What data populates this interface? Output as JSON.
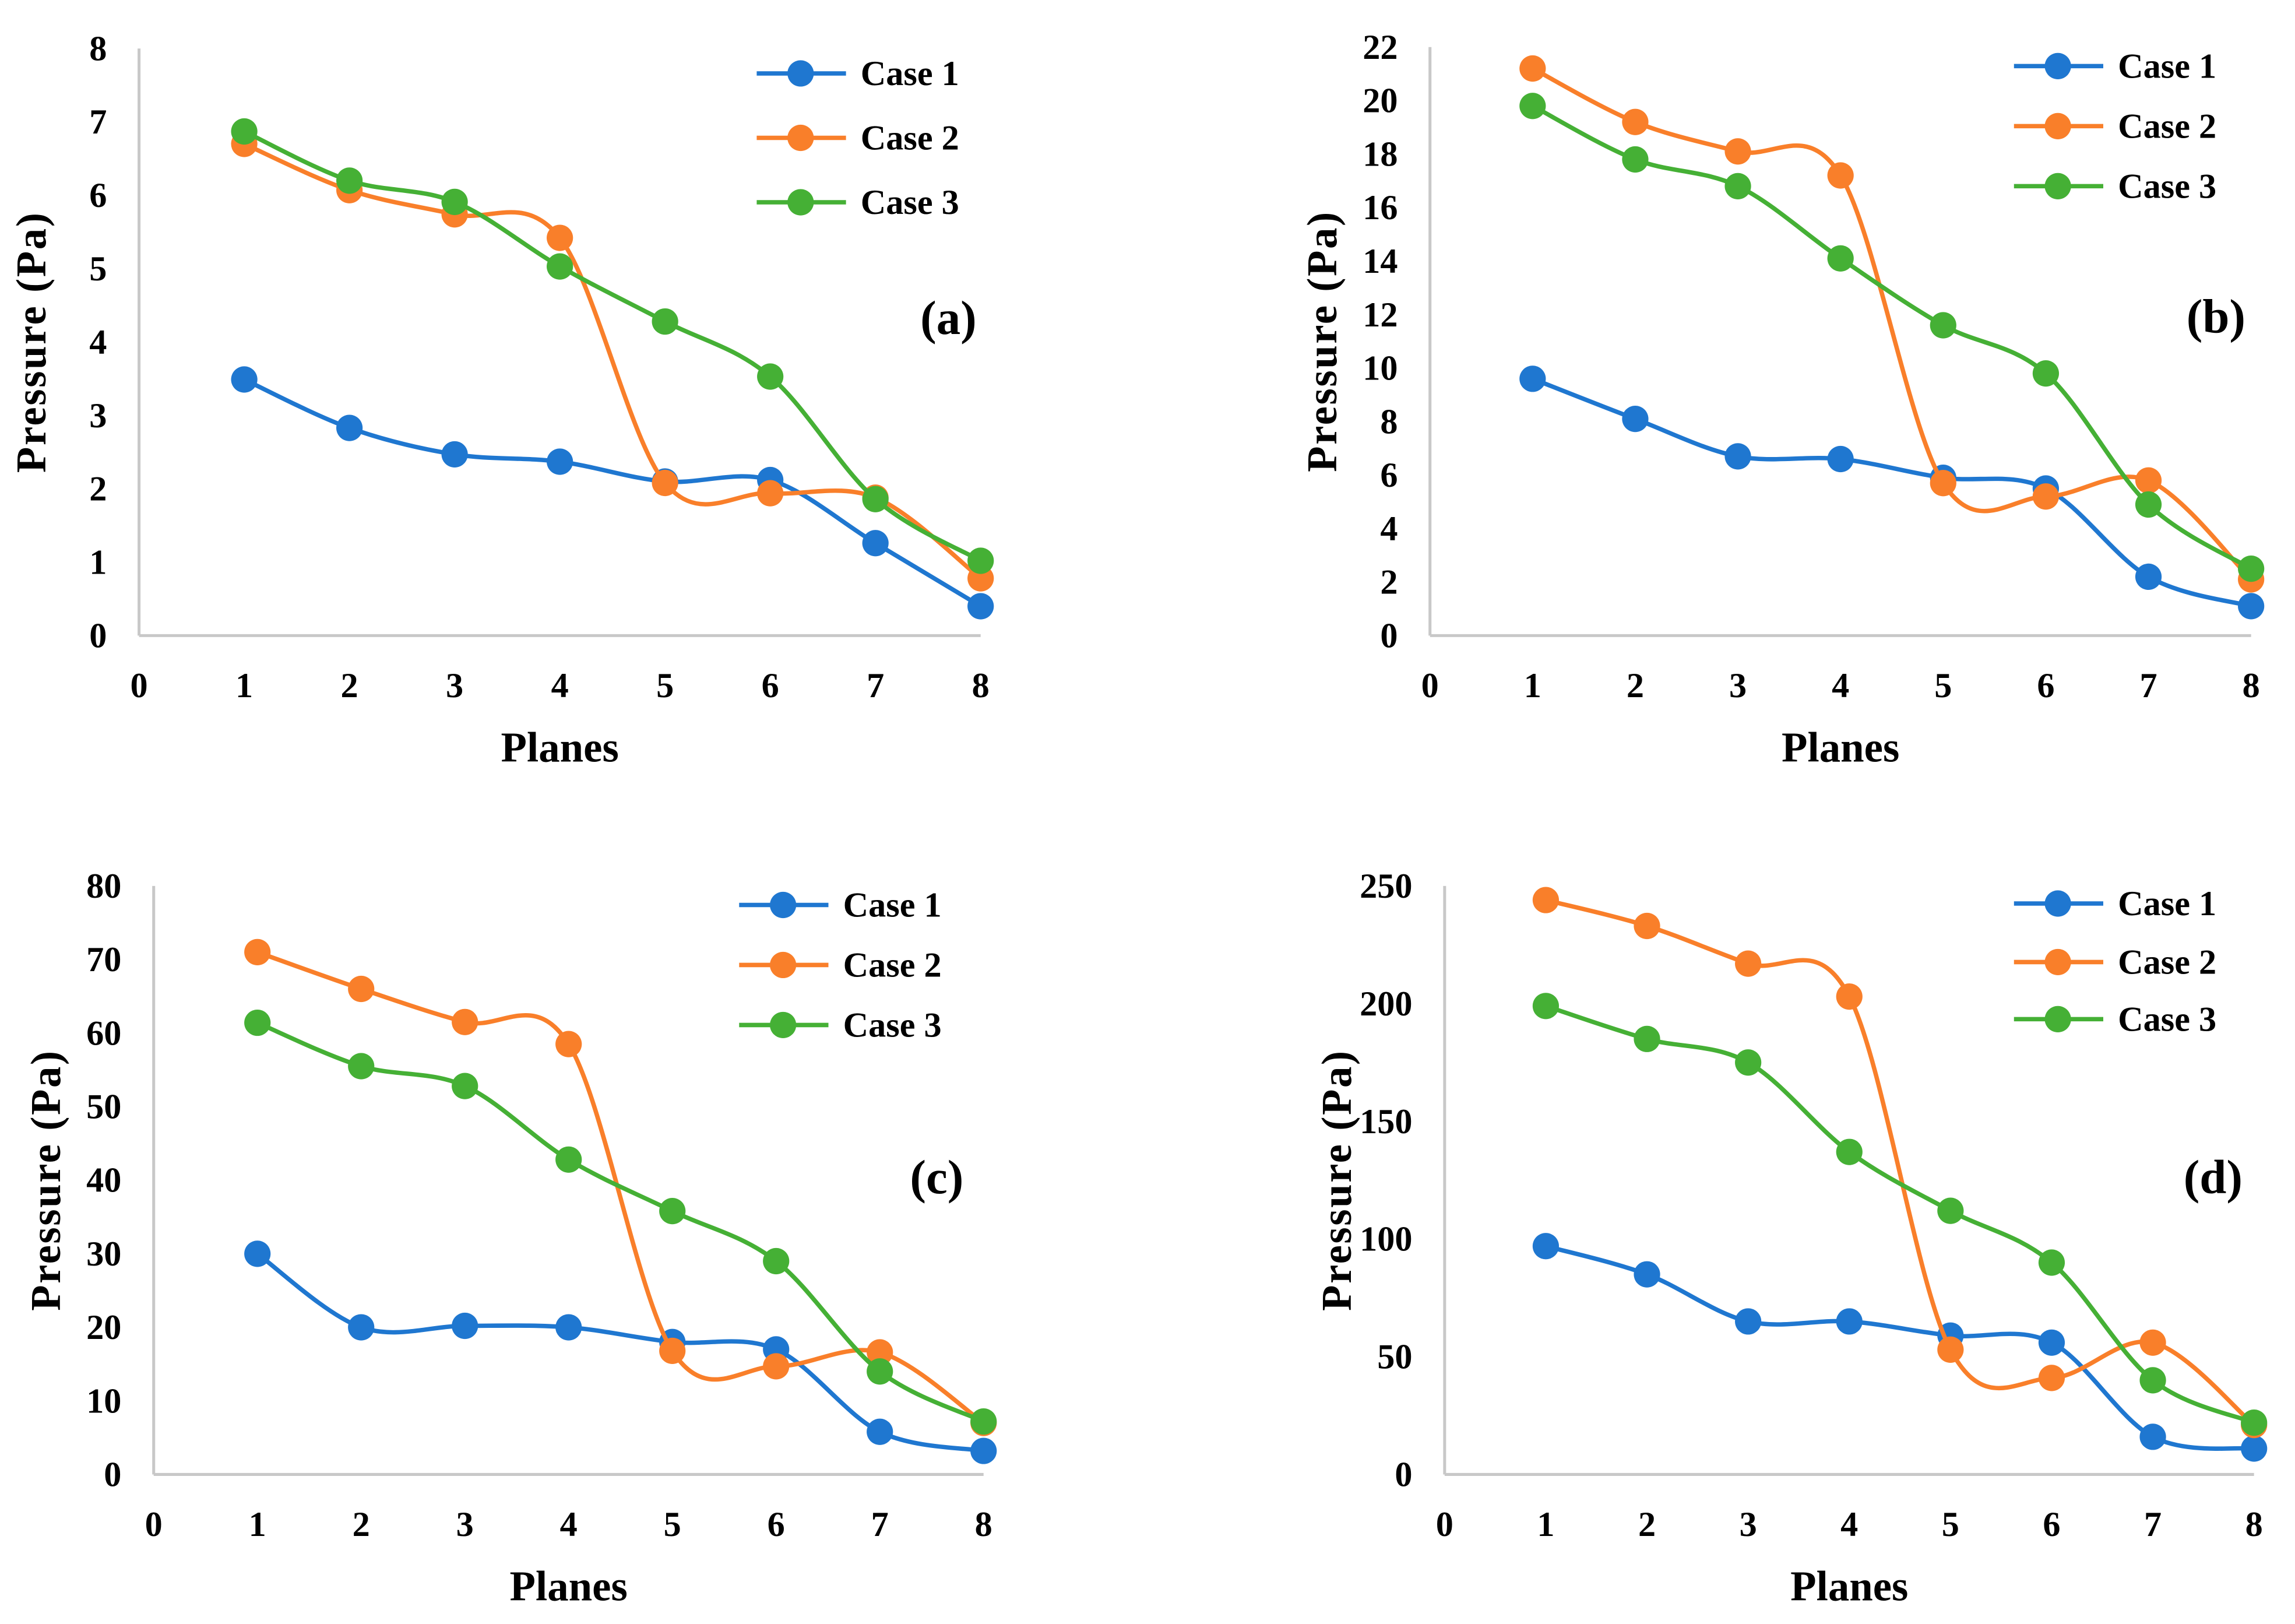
{
  "chart_data": [
    {
      "type": "line",
      "panel_label": "(a)",
      "xlabel": "Planes",
      "ylabel": "Pressure (Pa)",
      "xlim": [
        0,
        8
      ],
      "ylim": [
        0,
        8
      ],
      "xticks": [
        "0",
        "1",
        "2",
        "3",
        "4",
        "5",
        "6",
        "7",
        "8"
      ],
      "yticks": [
        "0",
        "1",
        "2",
        "3",
        "4",
        "5",
        "6",
        "7",
        "8"
      ],
      "legend_position": "top-right",
      "x": [
        1,
        2,
        3,
        4,
        5,
        6,
        7,
        8
      ],
      "series": [
        {
          "name": "Case 1",
          "color": "#1f77d0",
          "values": [
            3.49,
            2.83,
            2.47,
            2.37,
            2.1,
            2.12,
            1.26,
            0.4
          ]
        },
        {
          "name": "Case 2",
          "color": "#f97f2a",
          "values": [
            6.7,
            6.07,
            5.74,
            5.42,
            2.08,
            1.94,
            1.88,
            0.78
          ]
        },
        {
          "name": "Case 3",
          "color": "#45b035",
          "values": [
            6.87,
            6.2,
            5.91,
            5.03,
            4.28,
            3.53,
            1.86,
            1.02
          ]
        }
      ]
    },
    {
      "type": "line",
      "panel_label": "(b)",
      "xlabel": "Planes",
      "ylabel": "Pressure (Pa)",
      "xlim": [
        0,
        8
      ],
      "ylim": [
        0,
        22
      ],
      "xticks": [
        "0",
        "1",
        "2",
        "3",
        "4",
        "5",
        "6",
        "7",
        "8"
      ],
      "yticks": [
        "0",
        "2",
        "4",
        "6",
        "8",
        "10",
        "12",
        "14",
        "16",
        "18",
        "20",
        "22"
      ],
      "legend_position": "top-right",
      "x": [
        1,
        2,
        3,
        4,
        5,
        6,
        7,
        8
      ],
      "series": [
        {
          "name": "Case 1",
          "color": "#1f77d0",
          "values": [
            9.6,
            8.1,
            6.7,
            6.6,
            5.9,
            5.5,
            2.2,
            1.1
          ]
        },
        {
          "name": "Case 2",
          "color": "#f97f2a",
          "values": [
            21.2,
            19.2,
            18.1,
            17.2,
            5.7,
            5.2,
            5.8,
            2.1
          ]
        },
        {
          "name": "Case 3",
          "color": "#45b035",
          "values": [
            19.8,
            17.8,
            16.8,
            14.1,
            11.6,
            9.8,
            4.9,
            2.5
          ]
        }
      ]
    },
    {
      "type": "line",
      "panel_label": "(c)",
      "xlabel": "Planes",
      "ylabel": "Pressure (Pa)",
      "xlim": [
        0,
        8
      ],
      "ylim": [
        0,
        80
      ],
      "xticks": [
        "0",
        "1",
        "2",
        "3",
        "4",
        "5",
        "6",
        "7",
        "8"
      ],
      "yticks": [
        "0",
        "10",
        "20",
        "30",
        "40",
        "50",
        "60",
        "70",
        "80"
      ],
      "legend_position": "top-right",
      "x": [
        1,
        2,
        3,
        4,
        5,
        6,
        7,
        8
      ],
      "series": [
        {
          "name": "Case 1",
          "color": "#1f77d0",
          "values": [
            30,
            20,
            20.2,
            20,
            18,
            17,
            5.8,
            3.2
          ]
        },
        {
          "name": "Case 2",
          "color": "#f97f2a",
          "values": [
            71,
            66,
            61.5,
            58.5,
            16.8,
            14.7,
            16.6,
            7
          ]
        },
        {
          "name": "Case 3",
          "color": "#45b035",
          "values": [
            61.4,
            55.5,
            52.8,
            42.8,
            35.8,
            29,
            14,
            7.2
          ]
        }
      ]
    },
    {
      "type": "line",
      "panel_label": "(d)",
      "xlabel": "Planes",
      "ylabel": "Pressure (Pa)",
      "xlim": [
        0,
        8
      ],
      "ylim": [
        0,
        250
      ],
      "xticks": [
        "0",
        "1",
        "2",
        "3",
        "4",
        "5",
        "6",
        "7",
        "8"
      ],
      "yticks": [
        "0",
        "50",
        "100",
        "150",
        "200",
        "250"
      ],
      "legend_position": "top-right",
      "x": [
        1,
        2,
        3,
        4,
        5,
        6,
        7,
        8
      ],
      "series": [
        {
          "name": "Case 1",
          "color": "#1f77d0",
          "values": [
            97,
            85,
            65,
            65,
            59,
            56,
            16,
            11
          ]
        },
        {
          "name": "Case 2",
          "color": "#f97f2a",
          "values": [
            244,
            233,
            217,
            203,
            53,
            41,
            56,
            21
          ]
        },
        {
          "name": "Case 3",
          "color": "#45b035",
          "values": [
            199,
            185,
            175,
            137,
            112,
            90,
            40,
            22
          ]
        }
      ]
    }
  ]
}
